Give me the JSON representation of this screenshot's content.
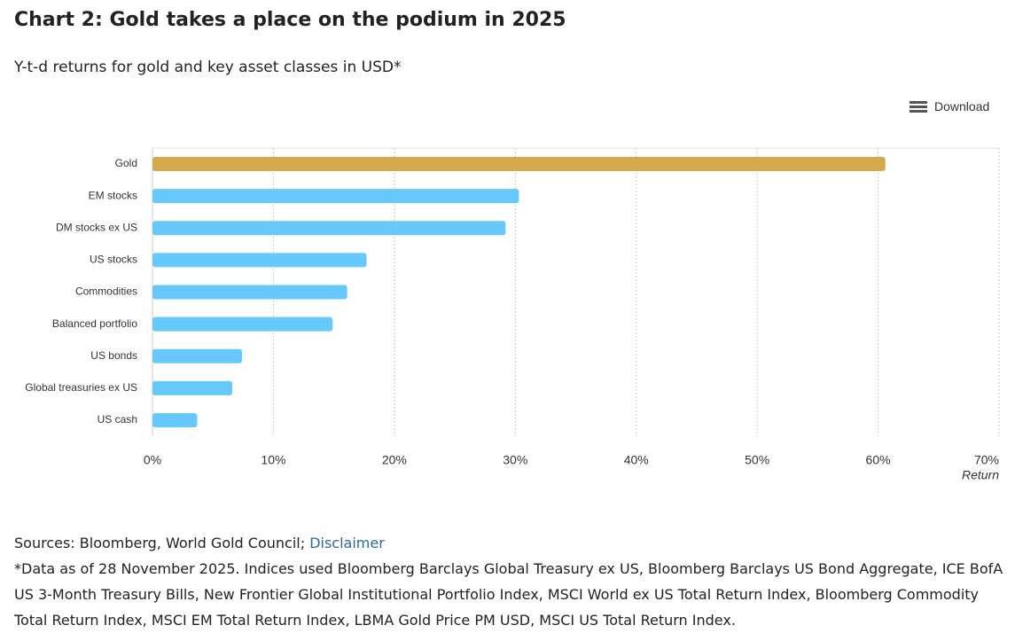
{
  "chart_data": {
    "type": "hbar",
    "title": "Chart 2: Gold takes a place on the podium in 2025",
    "subtitle": "Y-t-d returns for gold and key asset classes in USD*",
    "download": "Download",
    "x_label": "Return",
    "categories": [
      "Gold",
      "EM stocks",
      "DM stocks ex US",
      "US stocks",
      "Commodities",
      "Balanced portfolio",
      "US bonds",
      "Global treasuries ex US",
      "US cash"
    ],
    "values": [
      60.6,
      30.3,
      29.2,
      17.7,
      16.1,
      14.9,
      7.4,
      6.6,
      3.7
    ],
    "colors": [
      "#d4a94c",
      "#66c8fb",
      "#66c8fb",
      "#66c8fb",
      "#66c8fb",
      "#66c8fb",
      "#66c8fb",
      "#66c8fb",
      "#66c8fb"
    ],
    "xlim": [
      0,
      70
    ],
    "xticks": [
      {
        "value": 0,
        "label": "0%"
      },
      {
        "value": 10,
        "label": "10%"
      },
      {
        "value": 20,
        "label": "20%"
      },
      {
        "value": 30,
        "label": "30%"
      },
      {
        "value": 40,
        "label": "40%"
      },
      {
        "value": 50,
        "label": "50%"
      },
      {
        "value": 60,
        "label": "60%"
      },
      {
        "value": 70,
        "label": "70%"
      }
    ],
    "grid": true,
    "sources": "Sources: Bloomberg, World Gold Council;",
    "disclaimer": "Disclaimer",
    "footnote": "*Data as of 28 November 2025. Indices used Bloomberg Barclays Global Treasury ex US, Bloomberg Barclays US Bond Aggregate, ICE BofA US 3-Month Treasury Bills, New Frontier Global Institutional Portfolio Index, MSCI World ex US Total Return Index, Bloomberg Commodity Total Return Index, MSCI EM Total Return Index, LBMA Gold Price PM USD, MSCI US Total Return Index."
  }
}
